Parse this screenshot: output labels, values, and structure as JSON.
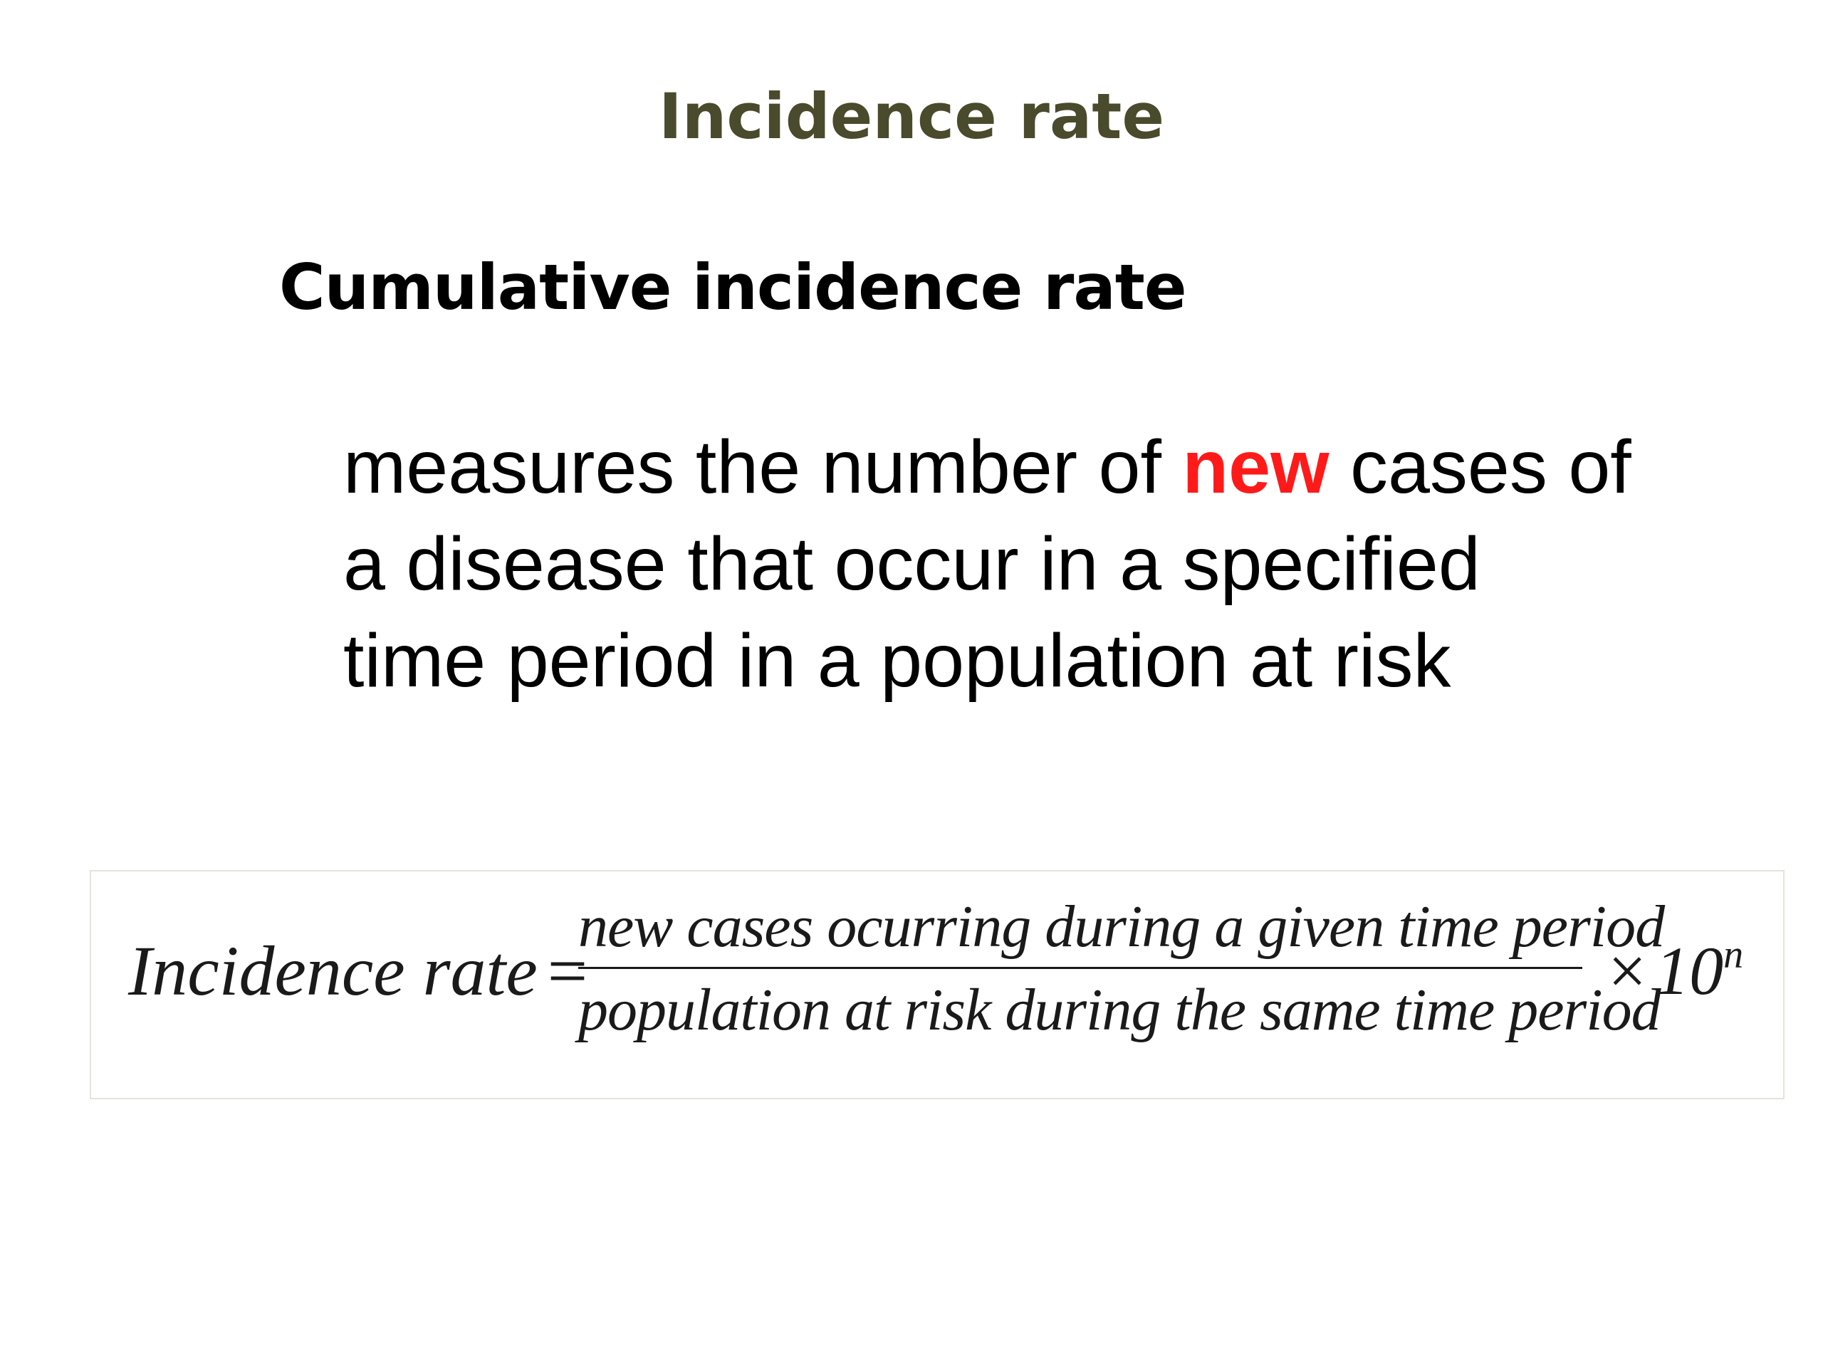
{
  "slide": {
    "title": "Incidence rate",
    "subheading": "Cumulative incidence rate",
    "definition": {
      "line1_before": "measures the number of ",
      "line1_highlight": "new",
      "line1_after": " cases of",
      "line2": "a disease that occur in a specified",
      "line3": "time period in a population at risk"
    },
    "formula": {
      "lhs": "Incidence rate",
      "equals": "=",
      "numerator": "new cases ocurring during a given time period",
      "denominator": "population at risk during the same time period",
      "times": "×",
      "base": "10",
      "exponent": "n"
    },
    "colors": {
      "title": "#4a4a2c",
      "highlight": "#ff1a1a",
      "text": "#000000"
    }
  }
}
